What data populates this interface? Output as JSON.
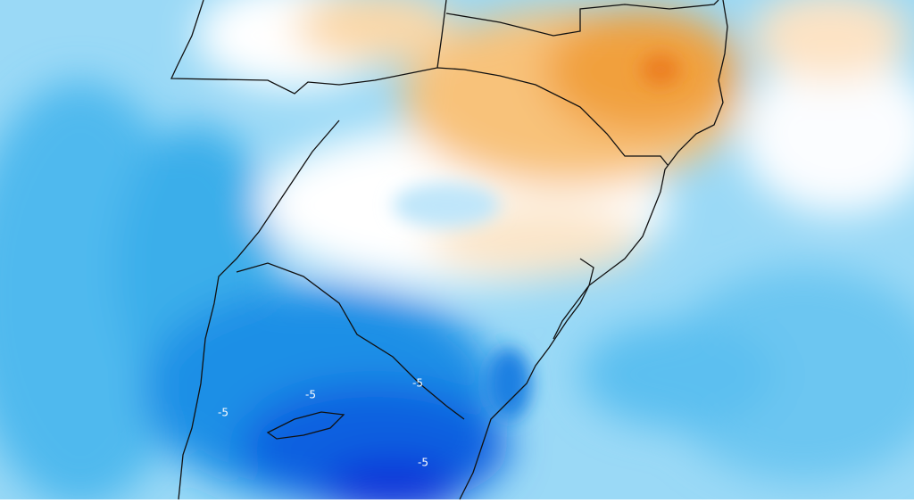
{
  "contour_labels": [
    "-5",
    "-5",
    "-5",
    "-5"
  ]
}
